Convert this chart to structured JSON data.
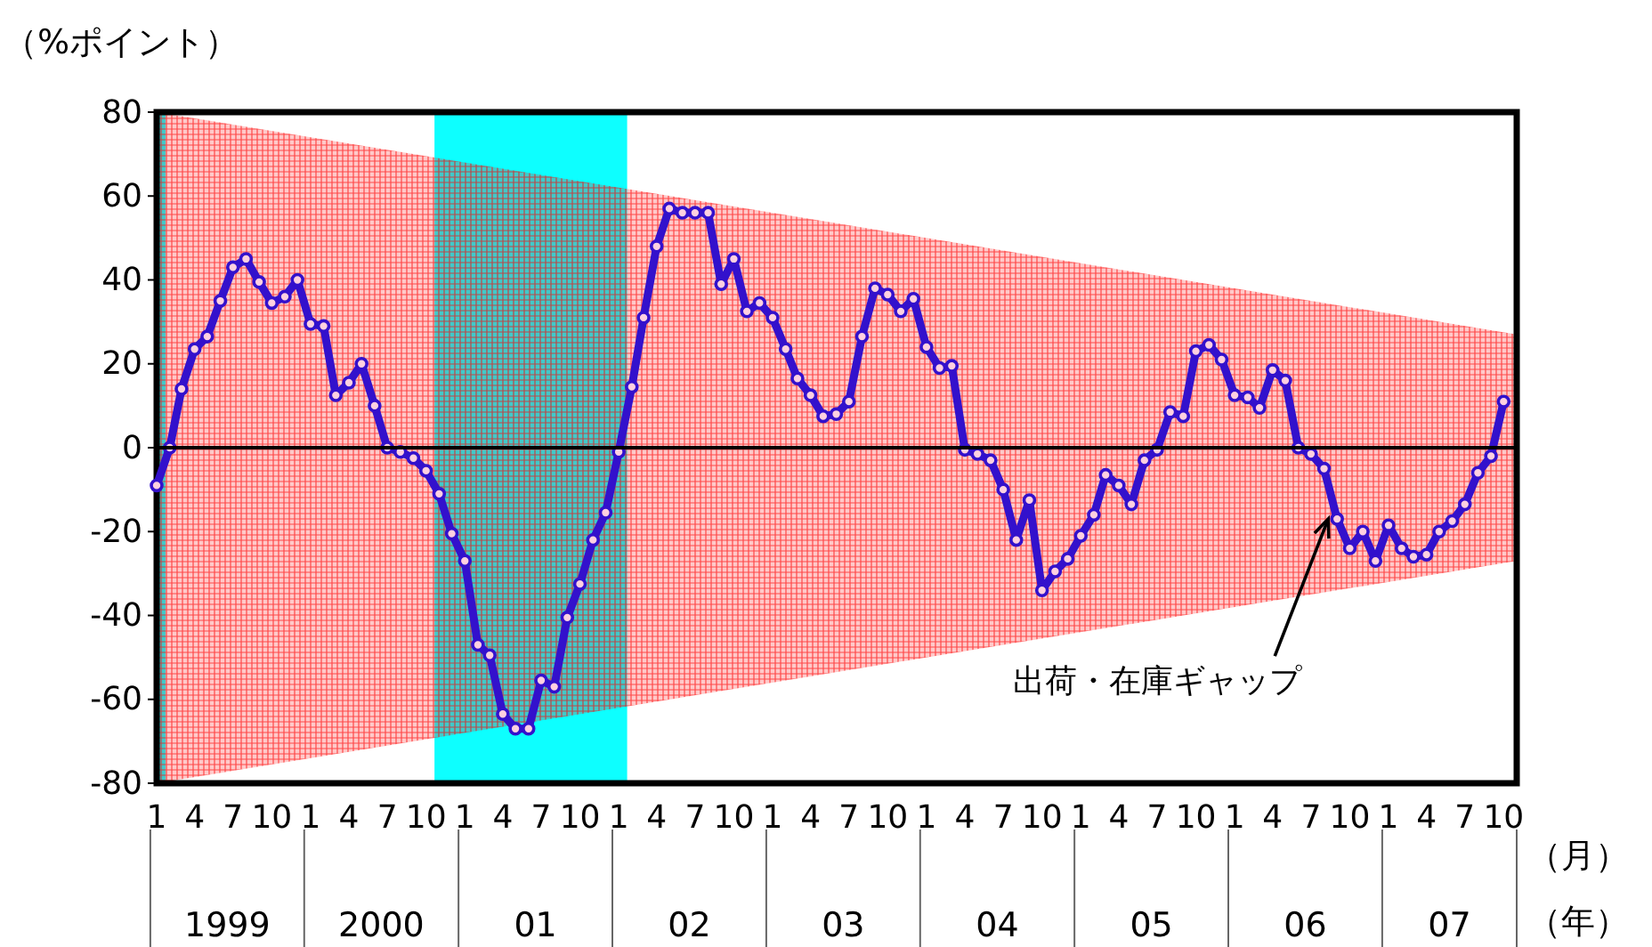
{
  "chart_data": {
    "type": "line",
    "ylabel": "（%ポイント）",
    "xlabel": "（月）",
    "x": [
      "1999-01",
      "1999-02",
      "1999-03",
      "1999-04",
      "1999-05",
      "1999-06",
      "1999-07",
      "1999-08",
      "1999-09",
      "1999-10",
      "1999-11",
      "1999-12",
      "2000-01",
      "2000-02",
      "2000-03",
      "2000-04",
      "2000-05",
      "2000-06",
      "2000-07",
      "2000-08",
      "2000-09",
      "2000-10",
      "2000-11",
      "2000-12",
      "2001-01",
      "2001-02",
      "2001-03",
      "2001-04",
      "2001-05",
      "2001-06",
      "2001-07",
      "2001-08",
      "2001-09",
      "2001-10",
      "2001-11",
      "2001-12",
      "2002-01",
      "2002-02",
      "2002-03",
      "2002-04",
      "2002-05",
      "2002-06",
      "2002-07",
      "2002-08",
      "2002-09",
      "2002-10",
      "2002-11",
      "2002-12",
      "2003-01",
      "2003-02",
      "2003-03",
      "2003-04",
      "2003-05",
      "2003-06",
      "2003-07",
      "2003-08",
      "2003-09",
      "2003-10",
      "2003-11",
      "2003-12",
      "2004-01",
      "2004-02",
      "2004-03",
      "2004-04",
      "2004-05",
      "2004-06",
      "2004-07",
      "2004-08",
      "2004-09",
      "2004-10",
      "2004-11",
      "2004-12",
      "2005-01",
      "2005-02",
      "2005-03",
      "2005-04",
      "2005-05",
      "2005-06",
      "2005-07",
      "2005-08",
      "2005-09",
      "2005-10",
      "2005-11",
      "2005-12",
      "2006-01",
      "2006-02",
      "2006-03",
      "2006-04",
      "2006-05",
      "2006-06",
      "2006-07",
      "2006-08",
      "2006-09",
      "2006-10",
      "2006-11",
      "2006-12",
      "2007-01",
      "2007-02",
      "2007-03",
      "2007-04",
      "2007-05",
      "2007-06",
      "2007-07",
      "2007-08",
      "2007-09",
      "2007-10"
    ],
    "series": [
      {
        "color": "#3311cc",
        "values": [
          -9,
          0,
          14,
          23.5,
          26.5,
          35,
          43,
          45,
          39.5,
          34.5,
          36,
          40,
          29.5,
          29,
          12.5,
          15.5,
          20,
          10,
          0,
          -1,
          -2.5,
          -5.5,
          -11,
          -20.5,
          -27,
          -47,
          -49.5,
          -63.5,
          -67,
          -67,
          -55.5,
          -57,
          -40.5,
          -32.5,
          -22,
          -15.5,
          -1,
          14.5,
          31,
          48,
          57,
          56,
          56,
          56,
          39,
          45,
          32.5,
          34.5,
          31,
          23.5,
          16.5,
          12.5,
          7.5,
          8,
          11,
          26.5,
          38,
          36.5,
          32.5,
          35.5,
          24,
          19,
          19.5,
          -0.5,
          -1.5,
          -3,
          -10,
          -22,
          -12.5,
          -34,
          -29.5,
          -26.5,
          -21,
          -16,
          -6.5,
          -9,
          -13.5,
          -3,
          -0.5,
          8.5,
          7.5,
          23,
          24.5,
          21,
          12.5,
          12,
          9.5,
          18.5,
          16,
          0,
          -1.5,
          -5,
          -17,
          -24,
          -20,
          -27,
          -18.5,
          -24,
          -26,
          -25.5,
          -20,
          -17.5,
          -13.5,
          -6,
          -2,
          11
        ]
      },
      {
        "color": "#000000",
        "marker": "none",
        "x": [
          "1999-01",
          "2007-11"
        ],
        "values": [
          0,
          0
        ],
        "lower": [
          -80,
          -27
        ],
        "upper": [
          80,
          27
        ]
      }
    ],
    "marker": "circle",
    "xlim": [
      "1999-01",
      "2007-11"
    ],
    "xticks": [
      {
        "value": "1999-01",
        "label": "1"
      },
      {
        "value": "1999-04",
        "label": "4"
      },
      {
        "value": "1999-07",
        "label": "7"
      },
      {
        "value": "1999-10",
        "label": "10"
      },
      {
        "value": "2000-01",
        "label": "1"
      },
      {
        "value": "2000-04",
        "label": "4"
      },
      {
        "value": "2000-07",
        "label": "7"
      },
      {
        "value": "2000-10",
        "label": "10"
      },
      {
        "value": "2001-01",
        "label": "1"
      },
      {
        "value": "2001-04",
        "label": "4"
      },
      {
        "value": "2001-07",
        "label": "7"
      },
      {
        "value": "2001-10",
        "label": "10"
      },
      {
        "value": "2002-01",
        "label": "1"
      },
      {
        "value": "2002-04",
        "label": "4"
      },
      {
        "value": "2002-07",
        "label": "7"
      },
      {
        "value": "2002-10",
        "label": "10"
      },
      {
        "value": "2003-01",
        "label": "1"
      },
      {
        "value": "2003-04",
        "label": "4"
      },
      {
        "value": "2003-07",
        "label": "7"
      },
      {
        "value": "2003-10",
        "label": "10"
      },
      {
        "value": "2004-01",
        "label": "1"
      },
      {
        "value": "2004-04",
        "label": "4"
      },
      {
        "value": "2004-07",
        "label": "7"
      },
      {
        "value": "2004-10",
        "label": "10"
      },
      {
        "value": "2005-01",
        "label": "1"
      },
      {
        "value": "2005-04",
        "label": "4"
      },
      {
        "value": "2005-07",
        "label": "7"
      },
      {
        "value": "2005-10",
        "label": "10"
      },
      {
        "value": "2006-01",
        "label": "1"
      },
      {
        "value": "2006-04",
        "label": "4"
      },
      {
        "value": "2006-07",
        "label": "7"
      },
      {
        "value": "2006-10",
        "label": "10"
      },
      {
        "value": "2007-01",
        "label": "1"
      },
      {
        "value": "2007-04",
        "label": "4"
      },
      {
        "value": "2007-07",
        "label": "7"
      },
      {
        "value": "2007-10",
        "label": "10"
      }
    ],
    "ylim": [
      -80,
      80
    ],
    "yticks": [
      -80,
      -60,
      -40,
      -20,
      0,
      20,
      40,
      60,
      80
    ],
    "bands": [
      {
        "axis": "x",
        "from": "1999-01",
        "to": "1999-01-22",
        "color": "#00ffff"
      },
      {
        "axis": "x",
        "from": "2000-10-21",
        "to": "2002-01-21",
        "color": "#00ffff"
      }
    ],
    "annotations": [
      {
        "text": "出荷・在庫ギャップ",
        "x": "2006-09",
        "y": -17
      },
      "1999",
      "2000",
      "01",
      "02",
      "03",
      "04",
      "05",
      "06",
      "07",
      "（年）"
    ],
    "grid": false
  }
}
